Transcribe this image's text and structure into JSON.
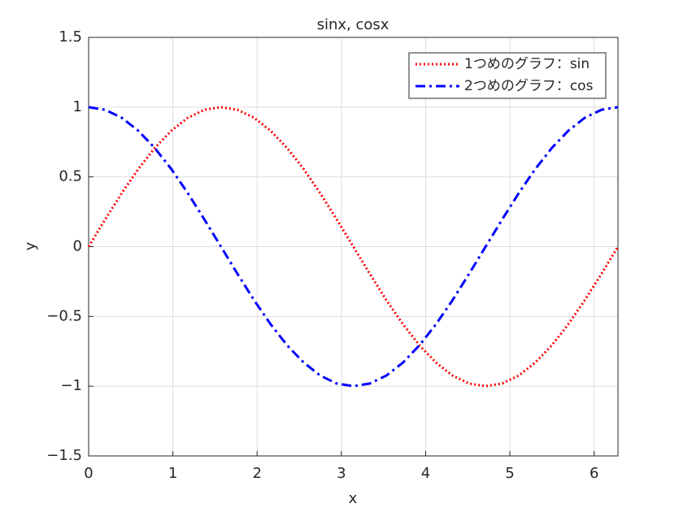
{
  "chart_data": {
    "type": "line",
    "title": "sinx, cosx",
    "x_label": "x",
    "y_label": "y",
    "x": [
      0,
      0.196,
      0.393,
      0.589,
      0.785,
      0.982,
      1.178,
      1.374,
      1.571,
      1.767,
      1.963,
      2.16,
      2.356,
      2.553,
      2.749,
      2.945,
      3.142,
      3.338,
      3.534,
      3.731,
      3.927,
      4.123,
      4.32,
      4.516,
      4.712,
      4.909,
      5.105,
      5.301,
      5.498,
      5.694,
      5.89,
      6.087,
      6.283
    ],
    "series": [
      {
        "name": "1つめのグラフ：sin",
        "color": "#ff0000",
        "dash": "dotted",
        "values": [
          0,
          0.195,
          0.383,
          0.556,
          0.707,
          0.831,
          0.924,
          0.981,
          1,
          0.981,
          0.924,
          0.831,
          0.707,
          0.556,
          0.383,
          0.195,
          0,
          -0.195,
          -0.383,
          -0.556,
          -0.707,
          -0.831,
          -0.924,
          -0.981,
          -1,
          -0.981,
          -0.924,
          -0.831,
          -0.707,
          -0.556,
          -0.383,
          -0.195,
          0
        ]
      },
      {
        "name": "2つめのグラフ：cos",
        "color": "#0000ff",
        "dash": "dashdot",
        "values": [
          1,
          0.981,
          0.924,
          0.831,
          0.707,
          0.556,
          0.383,
          0.195,
          0,
          -0.195,
          -0.383,
          -0.556,
          -0.707,
          -0.831,
          -0.924,
          -0.981,
          -1,
          -0.981,
          -0.924,
          -0.831,
          -0.707,
          -0.556,
          -0.383,
          -0.195,
          0,
          0.195,
          0.383,
          0.556,
          0.707,
          0.831,
          0.924,
          0.981,
          1
        ]
      }
    ],
    "xlim": [
      0,
      6.283
    ],
    "xticks": [
      0,
      1,
      2,
      3,
      4,
      5,
      6
    ],
    "ylim": [
      -1.5,
      1.5
    ],
    "yticks": [
      {
        "value": -1.5,
        "label": "−1.5"
      },
      {
        "value": -1,
        "label": "−1"
      },
      {
        "value": -0.5,
        "label": "−0.5"
      },
      0,
      0.5,
      1,
      1.5
    ],
    "grid": true,
    "legend": "northeast"
  }
}
